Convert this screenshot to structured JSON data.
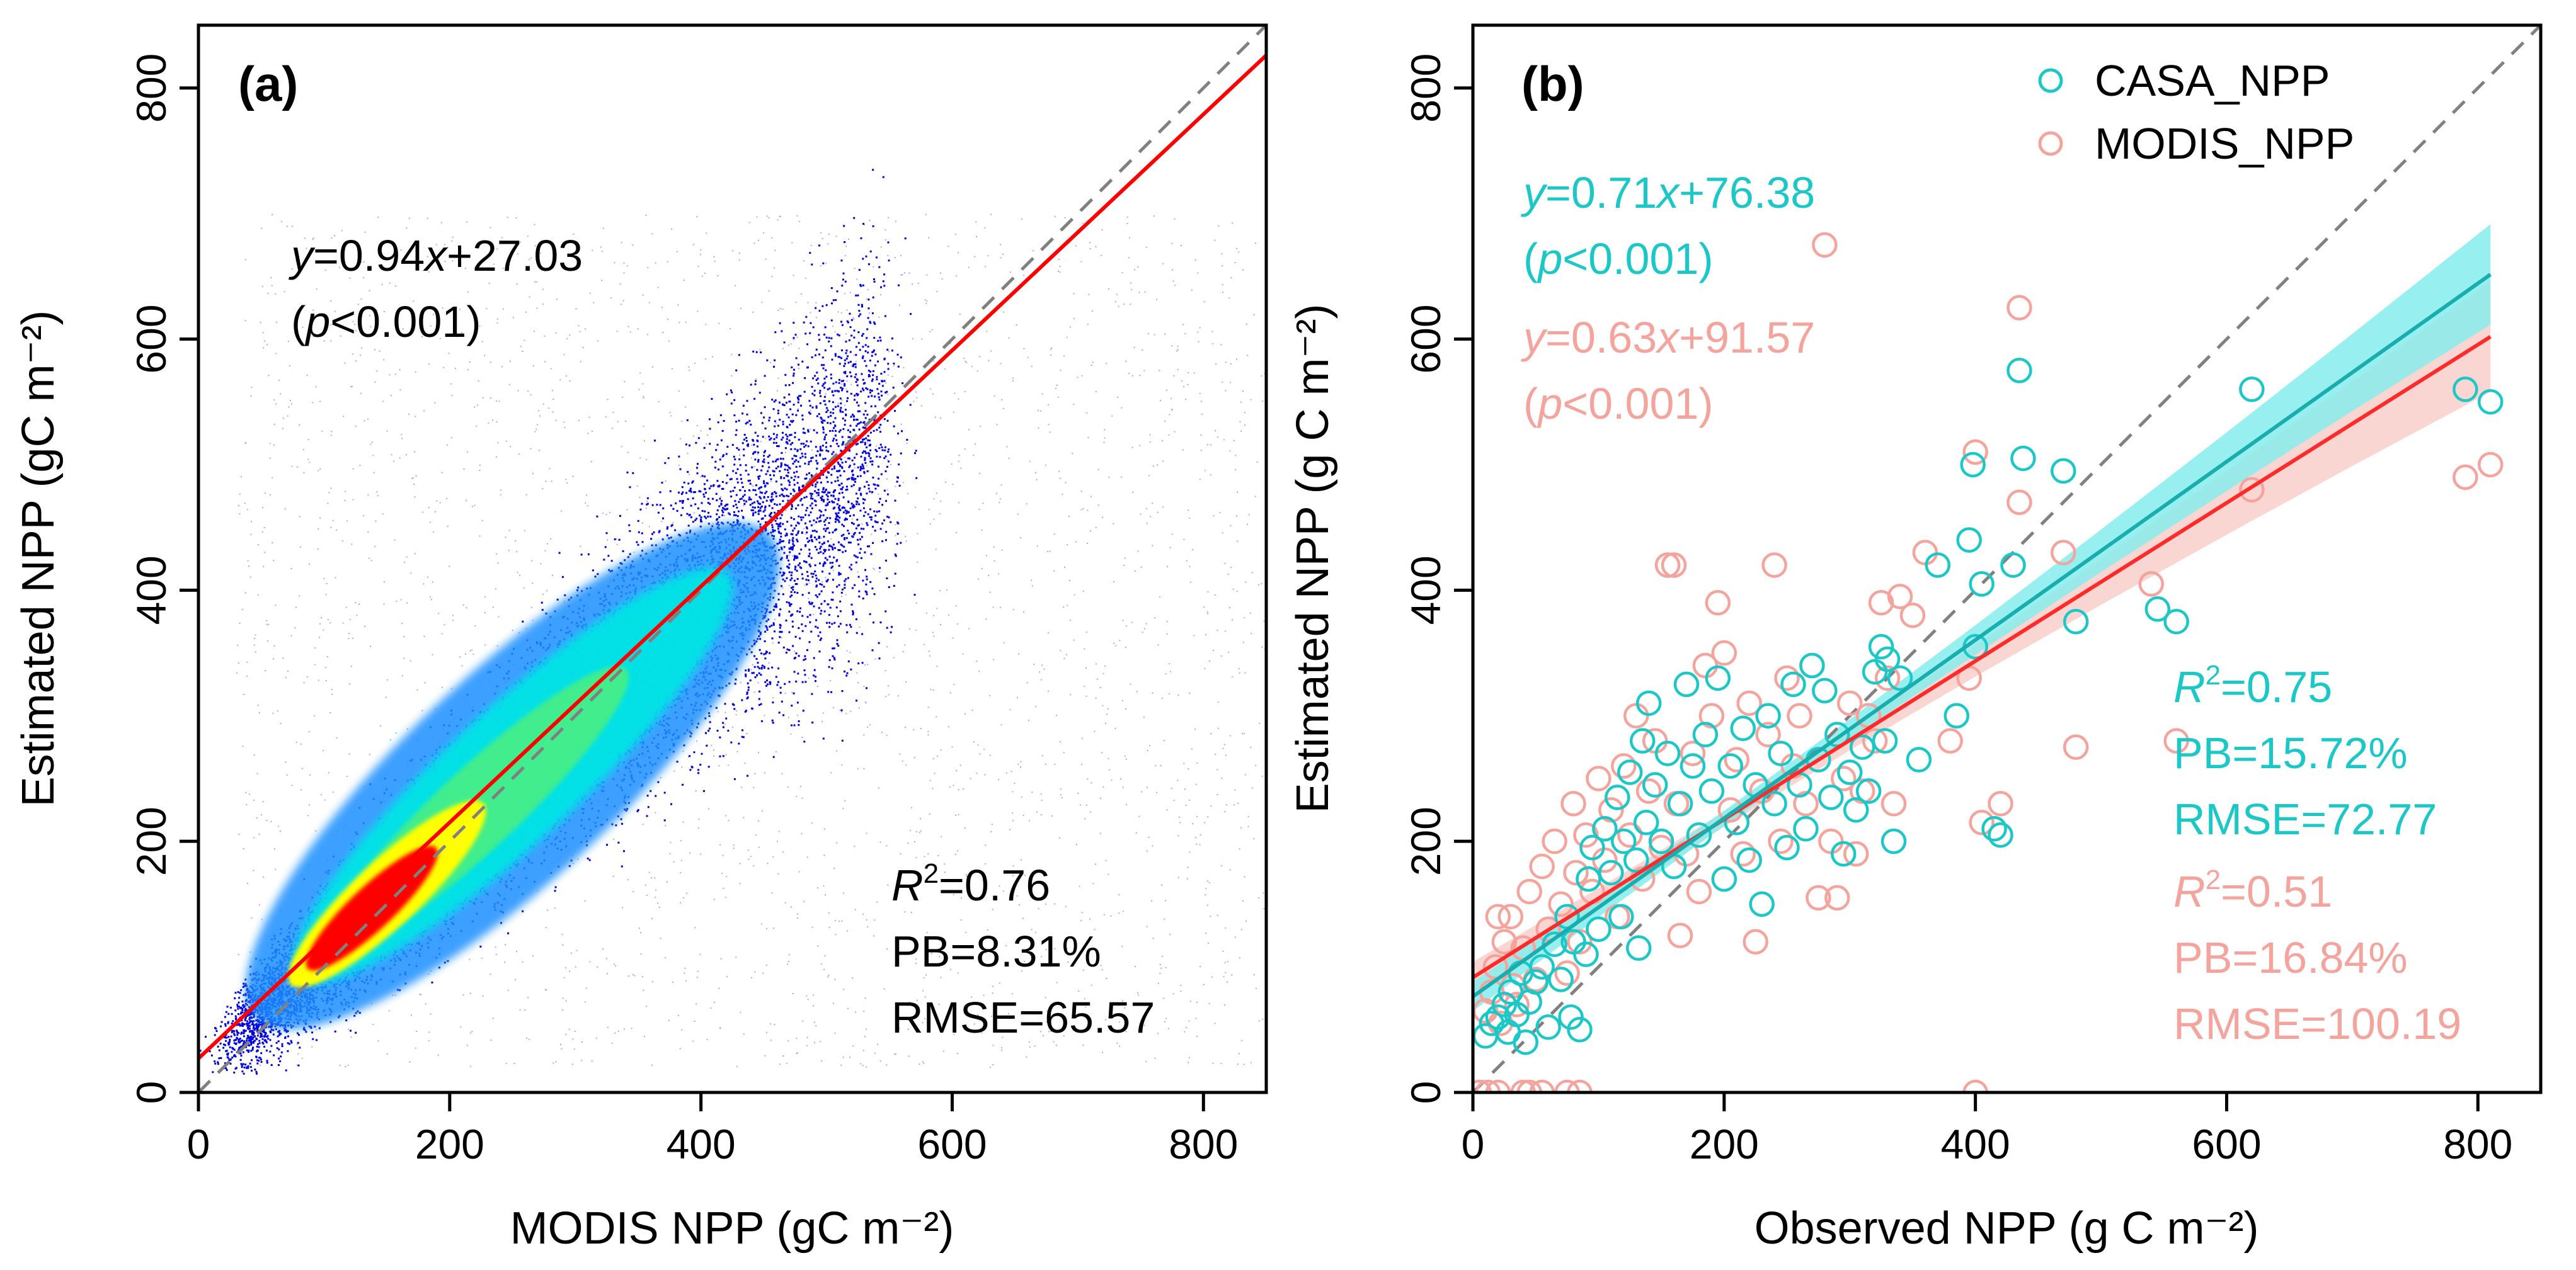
{
  "chart_data": [
    {
      "type": "scatter",
      "panel_label": "(a)",
      "xlabel": "MODIS NPP (gC m⁻²)",
      "ylabel": "Estimated NPP (gC m⁻²)",
      "xlim": [
        0,
        850
      ],
      "ylim": [
        0,
        850
      ],
      "xticks": [
        0,
        200,
        400,
        600,
        800
      ],
      "yticks": [
        0,
        200,
        400,
        600,
        800
      ],
      "density": true,
      "density_colors": [
        "#0000dd",
        "#1e8fff",
        "#00e5e5",
        "#44ee88",
        "#ffff00",
        "#ff0000"
      ],
      "fit_line": {
        "slope": 0.94,
        "intercept": 27.03,
        "color": "#ff0000"
      },
      "one_to_one": {
        "color": "#808080",
        "style": "dashed"
      },
      "equation": {
        "y": "y",
        "rhs": "=0.94",
        "x": "x",
        "tail": "+27.03"
      },
      "pvalue": {
        "open": "(",
        "p": "p",
        "rest": "<0.001)"
      },
      "stats": {
        "r": "R",
        "sup": "2",
        "r2_value": "=0.76",
        "pb": "PB=8.31%",
        "rmse": "RMSE=65.57"
      },
      "text_color": "#000000"
    },
    {
      "type": "scatter",
      "panel_label": "(b)",
      "xlabel": "Observed NPP (g C m⁻²)",
      "ylabel": "Estimated NPP (g C m⁻²)",
      "xlim": [
        0,
        850
      ],
      "ylim": [
        0,
        850
      ],
      "xticks": [
        0,
        200,
        400,
        600,
        800
      ],
      "yticks": [
        0,
        200,
        400,
        600,
        800
      ],
      "one_to_one": {
        "color": "#808080",
        "style": "dashed"
      },
      "legend": [
        {
          "name": "CASA_NPP",
          "color": "#1cc7c7"
        },
        {
          "name": "MODIS_NPP",
          "color": "#f4a49c"
        }
      ],
      "series": [
        {
          "name": "CASA_NPP",
          "color": "#1cc7c7",
          "band_color": "#86ecec",
          "fit_line": {
            "slope": 0.71,
            "intercept": 76.38,
            "color": "#1aadad"
          },
          "equation": {
            "y": "y",
            "rhs": "=0.71",
            "x": "x",
            "tail": "+76.38"
          },
          "pvalue": {
            "open": "(",
            "p": "p",
            "rest": "<0.001)"
          },
          "stats": {
            "r": "R",
            "sup": "2",
            "r2_value": "=0.75",
            "pb": "PB=15.72%",
            "rmse": "RMSE=72.77"
          },
          "points": [
            [
              10,
              45
            ],
            [
              15,
              55
            ],
            [
              20,
              60
            ],
            [
              25,
              70
            ],
            [
              28,
              48
            ],
            [
              30,
              80
            ],
            [
              35,
              62
            ],
            [
              38,
              95
            ],
            [
              42,
              40
            ],
            [
              45,
              72
            ],
            [
              50,
              88
            ],
            [
              55,
              100
            ],
            [
              60,
              52
            ],
            [
              65,
              118
            ],
            [
              70,
              90
            ],
            [
              75,
              140
            ],
            [
              78,
              60
            ],
            [
              80,
              120
            ],
            [
              85,
              50
            ],
            [
              90,
              110
            ],
            [
              92,
              170
            ],
            [
              95,
              195
            ],
            [
              100,
              130
            ],
            [
              105,
              210
            ],
            [
              110,
              175
            ],
            [
              115,
              235
            ],
            [
              118,
              140
            ],
            [
              120,
              200
            ],
            [
              125,
              255
            ],
            [
              130,
              185
            ],
            [
              132,
              115
            ],
            [
              135,
              280
            ],
            [
              138,
              215
            ],
            [
              140,
              310
            ],
            [
              145,
              245
            ],
            [
              150,
              200
            ],
            [
              155,
              270
            ],
            [
              160,
              180
            ],
            [
              165,
              230
            ],
            [
              170,
              325
            ],
            [
              175,
              260
            ],
            [
              180,
              205
            ],
            [
              185,
              285
            ],
            [
              190,
              240
            ],
            [
              195,
              330
            ],
            [
              200,
              170
            ],
            [
              205,
              260
            ],
            [
              210,
              215
            ],
            [
              215,
              290
            ],
            [
              220,
              185
            ],
            [
              225,
              245
            ],
            [
              230,
              150
            ],
            [
              235,
              300
            ],
            [
              240,
              230
            ],
            [
              245,
              270
            ],
            [
              250,
              195
            ],
            [
              255,
              325
            ],
            [
              260,
              245
            ],
            [
              265,
              210
            ],
            [
              270,
              340
            ],
            [
              275,
              265
            ],
            [
              280,
              320
            ],
            [
              285,
              235
            ],
            [
              290,
              285
            ],
            [
              295,
              190
            ],
            [
              300,
              255
            ],
            [
              305,
              225
            ],
            [
              310,
              275
            ],
            [
              315,
              240
            ],
            [
              320,
              335
            ],
            [
              325,
              355
            ],
            [
              328,
              280
            ],
            [
              330,
              345
            ],
            [
              335,
              200
            ],
            [
              340,
              330
            ],
            [
              355,
              265
            ],
            [
              370,
              420
            ],
            [
              385,
              300
            ],
            [
              395,
              440
            ],
            [
              398,
              500
            ],
            [
              400,
              355
            ],
            [
              405,
              405
            ],
            [
              415,
              210
            ],
            [
              420,
              205
            ],
            [
              430,
              420
            ],
            [
              435,
              575
            ],
            [
              438,
              505
            ],
            [
              470,
              495
            ],
            [
              480,
              375
            ],
            [
              545,
              385
            ],
            [
              560,
              375
            ],
            [
              620,
              560
            ],
            [
              790,
              560
            ],
            [
              810,
              550
            ]
          ]
        },
        {
          "name": "MODIS_NPP",
          "color": "#f4a49c",
          "band_color": "#f9cfca",
          "fit_line": {
            "slope": 0.63,
            "intercept": 91.57,
            "color": "#ff2a2a"
          },
          "equation": {
            "y": "y",
            "rhs": "=0.63",
            "x": "x",
            "tail": "+91.57"
          },
          "pvalue": {
            "open": "(",
            "p": "p",
            "rest": "<0.001)"
          },
          "stats": {
            "r": "R",
            "sup": "2",
            "r2_value": "=0.51",
            "pb": "PB=16.84%",
            "rmse": "RMSE=100.19"
          },
          "points": [
            [
              5,
              0
            ],
            [
              12,
              0
            ],
            [
              20,
              0
            ],
            [
              40,
              0
            ],
            [
              45,
              0
            ],
            [
              55,
              0
            ],
            [
              75,
              0
            ],
            [
              85,
              0
            ],
            [
              10,
              65
            ],
            [
              15,
              80
            ],
            [
              18,
              100
            ],
            [
              20,
              140
            ],
            [
              22,
              55
            ],
            [
              25,
              120
            ],
            [
              30,
              140
            ],
            [
              32,
              85
            ],
            [
              35,
              70
            ],
            [
              40,
              115
            ],
            [
              45,
              160
            ],
            [
              50,
              90
            ],
            [
              55,
              180
            ],
            [
              60,
              130
            ],
            [
              65,
              200
            ],
            [
              70,
              150
            ],
            [
              75,
              95
            ],
            [
              80,
              230
            ],
            [
              82,
              175
            ],
            [
              85,
              120
            ],
            [
              90,
              205
            ],
            [
              95,
              160
            ],
            [
              100,
              250
            ],
            [
              105,
              185
            ],
            [
              110,
              225
            ],
            [
              115,
              140
            ],
            [
              120,
              260
            ],
            [
              125,
              205
            ],
            [
              130,
              300
            ],
            [
              135,
              170
            ],
            [
              140,
              240
            ],
            [
              145,
              280
            ],
            [
              150,
              195
            ],
            [
              155,
              420
            ],
            [
              160,
              420
            ],
            [
              162,
              230
            ],
            [
              165,
              125
            ],
            [
              170,
              190
            ],
            [
              175,
              270
            ],
            [
              180,
              160
            ],
            [
              185,
              340
            ],
            [
              190,
              300
            ],
            [
              195,
              390
            ],
            [
              200,
              350
            ],
            [
              205,
              225
            ],
            [
              210,
              265
            ],
            [
              215,
              190
            ],
            [
              220,
              310
            ],
            [
              225,
              120
            ],
            [
              230,
              240
            ],
            [
              235,
              285
            ],
            [
              240,
              420
            ],
            [
              245,
              200
            ],
            [
              250,
              330
            ],
            [
              255,
              260
            ],
            [
              260,
              300
            ],
            [
              265,
              230
            ],
            [
              270,
              340
            ],
            [
              275,
              155
            ],
            [
              280,
              675
            ],
            [
              285,
              200
            ],
            [
              290,
              155
            ],
            [
              295,
              250
            ],
            [
              300,
              310
            ],
            [
              305,
              190
            ],
            [
              310,
              240
            ],
            [
              315,
              300
            ],
            [
              320,
              280
            ],
            [
              325,
              390
            ],
            [
              330,
              330
            ],
            [
              335,
              230
            ],
            [
              340,
              395
            ],
            [
              350,
              380
            ],
            [
              360,
              430
            ],
            [
              380,
              280
            ],
            [
              395,
              330
            ],
            [
              400,
              0
            ],
            [
              400,
              510
            ],
            [
              405,
              215
            ],
            [
              420,
              230
            ],
            [
              435,
              625
            ],
            [
              435,
              470
            ],
            [
              470,
              430
            ],
            [
              480,
              275
            ],
            [
              540,
              405
            ],
            [
              560,
              280
            ],
            [
              620,
              480
            ],
            [
              790,
              490
            ],
            [
              810,
              500
            ]
          ]
        }
      ]
    }
  ]
}
